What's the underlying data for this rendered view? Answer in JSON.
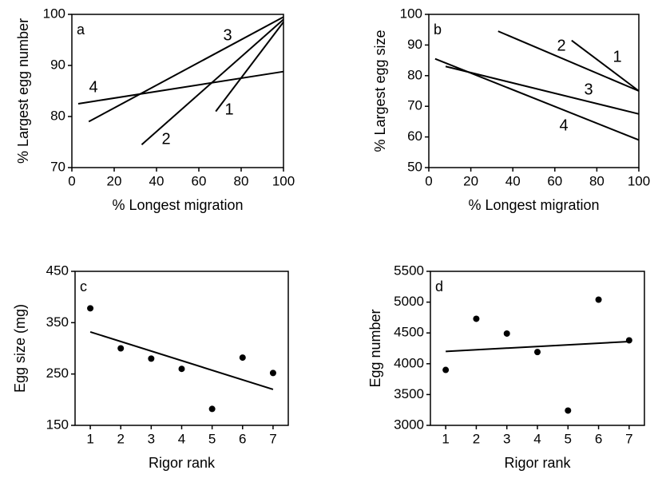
{
  "chart_data": [
    {
      "type": "line",
      "label": "a",
      "xlabel": "% Longest migration",
      "ylabel": "% Largest egg number",
      "xlim": [
        0,
        100
      ],
      "ylim": [
        70,
        100
      ],
      "xticks": [
        0,
        20,
        40,
        60,
        80,
        100
      ],
      "yticks": [
        70,
        80,
        90,
        100
      ],
      "series": [
        {
          "name": "1",
          "color": "#000000",
          "x": [
            68,
            100
          ],
          "values": [
            81,
            98.5
          ]
        },
        {
          "name": "2",
          "color": "#000000",
          "x": [
            33,
            100
          ],
          "values": [
            74.5,
            99
          ]
        },
        {
          "name": "3",
          "color": "#000000",
          "x": [
            8,
            100
          ],
          "values": [
            79,
            99.5
          ]
        },
        {
          "name": "4",
          "color": "#000000",
          "x": [
            3,
            100
          ],
          "values": [
            82.5,
            88.8
          ]
        }
      ]
    },
    {
      "type": "line",
      "label": "b",
      "xlabel": "% Longest migration",
      "ylabel": "% Largest egg size",
      "xlim": [
        0,
        100
      ],
      "ylim": [
        50,
        100
      ],
      "xticks": [
        0,
        20,
        40,
        60,
        80,
        100
      ],
      "yticks": [
        50,
        60,
        70,
        80,
        90,
        100
      ],
      "series": [
        {
          "name": "1",
          "color": "#000000",
          "x": [
            68,
            100
          ],
          "values": [
            91.5,
            75
          ]
        },
        {
          "name": "2",
          "color": "#000000",
          "x": [
            33,
            100
          ],
          "values": [
            94.5,
            75
          ]
        },
        {
          "name": "3",
          "color": "#000000",
          "x": [
            8,
            100
          ],
          "values": [
            83,
            67.5
          ]
        },
        {
          "name": "4",
          "color": "#000000",
          "x": [
            3,
            100
          ],
          "values": [
            85.5,
            59
          ]
        }
      ]
    },
    {
      "type": "scatter",
      "label": "c",
      "xlabel": "Rigor rank",
      "ylabel": "Egg size (mg)",
      "xlim": [
        0.5,
        7.5
      ],
      "ylim": [
        150,
        450
      ],
      "xticks": [
        1,
        2,
        3,
        4,
        5,
        6,
        7
      ],
      "yticks": [
        150,
        250,
        350,
        450
      ],
      "color": "#000000",
      "x": [
        1,
        2,
        3,
        4,
        5,
        6,
        7
      ],
      "values": [
        378,
        300,
        280,
        260,
        182,
        282,
        252
      ],
      "trend": {
        "x": [
          1,
          7
        ],
        "values": [
          332,
          220
        ]
      }
    },
    {
      "type": "scatter",
      "label": "d",
      "xlabel": "Rigor rank",
      "ylabel": "Egg number",
      "xlim": [
        0.5,
        7.5
      ],
      "ylim": [
        3000,
        5500
      ],
      "xticks": [
        1,
        2,
        3,
        4,
        5,
        6,
        7
      ],
      "yticks": [
        3000,
        3500,
        4000,
        4500,
        5000,
        5500
      ],
      "color": "#000000",
      "x": [
        1,
        2,
        3,
        4,
        5,
        6,
        7
      ],
      "values": [
        3900,
        4730,
        4490,
        4190,
        3240,
        5040,
        4380
      ],
      "trend": {
        "x": [
          1,
          7
        ],
        "values": [
          4200,
          4360
        ]
      }
    }
  ]
}
